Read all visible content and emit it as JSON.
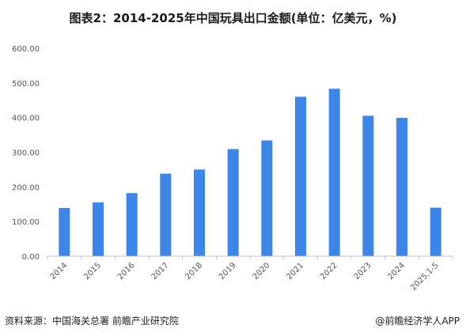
{
  "title": "图表2：2014-2025年中国玩具出口金额(单位：亿美元，%)",
  "source": "资料来源：中国海关总署 前瞻产业研究院",
  "brand": "@前瞻经济学人APP",
  "colors": {
    "bar": "#3b86e6",
    "axis": "#bfbfbf"
  },
  "chart_data": {
    "type": "bar",
    "title": "图表2：2014-2025年中国玩具出口金额(单位：亿美元，%)",
    "xlabel": "",
    "ylabel": "",
    "categories": [
      "2014",
      "2015",
      "2016",
      "2017",
      "2018",
      "2019",
      "2020",
      "2021",
      "2022",
      "2023",
      "2024",
      "2025.1-5"
    ],
    "values": [
      139,
      155,
      182,
      238,
      250,
      309,
      334,
      460,
      483,
      405,
      399,
      140
    ],
    "ylim": [
      0,
      600
    ],
    "yticks": [
      "0.00",
      "100.00",
      "200.00",
      "300.00",
      "400.00",
      "500.00",
      "600.00"
    ],
    "grid": false,
    "legend": "none"
  }
}
